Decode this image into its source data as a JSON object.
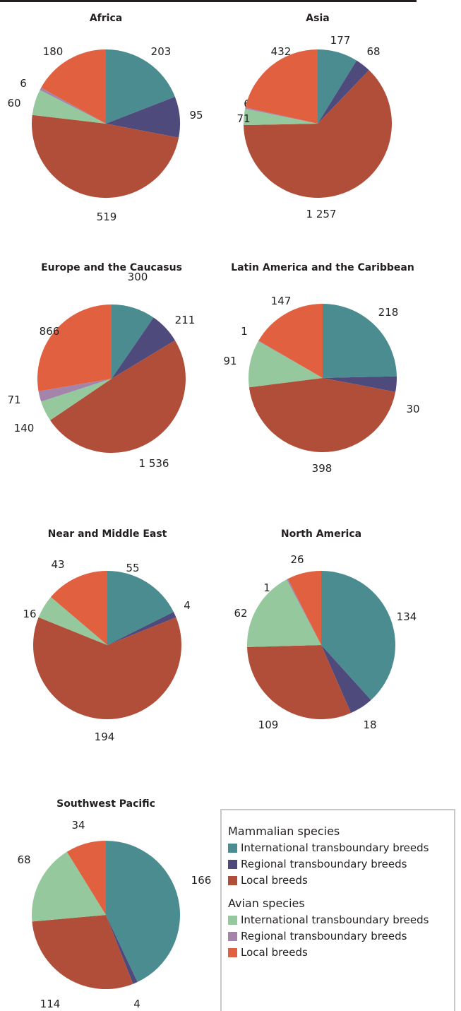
{
  "colors": {
    "mammal_international": "#4a8c8f",
    "mammal_regional": "#4f4a7c",
    "mammal_local": "#b04e3a",
    "avian_international": "#95c89c",
    "avian_regional": "#a584ab",
    "avian_local": "#e0603f"
  },
  "chart_data": [
    {
      "type": "pie",
      "title": "Africa",
      "values": [
        203,
        95,
        519,
        60,
        6,
        180
      ],
      "labels": [
        "203",
        "95",
        "519",
        "60",
        "6",
        "180"
      ]
    },
    {
      "type": "pie",
      "title": "Asia",
      "values": [
        177,
        68,
        1257,
        71,
        6,
        432
      ],
      "labels": [
        "177",
        "68",
        "1 257",
        "71",
        "6",
        "432"
      ]
    },
    {
      "type": "pie",
      "title": "Europe and the Caucasus",
      "values": [
        300,
        211,
        1536,
        140,
        71,
        866
      ],
      "labels": [
        "300",
        "211",
        "1 536",
        "140",
        "71",
        "866"
      ]
    },
    {
      "type": "pie",
      "title": "Latin America and the Caribbean",
      "values": [
        218,
        30,
        398,
        91,
        1,
        147
      ],
      "labels": [
        "218",
        "30",
        "398",
        "91",
        "1",
        "147"
      ]
    },
    {
      "type": "pie",
      "title": "Near and Middle East",
      "values": [
        55,
        4,
        194,
        16,
        0,
        43
      ],
      "labels": [
        "55",
        "4",
        "194",
        "16",
        "",
        "43"
      ]
    },
    {
      "type": "pie",
      "title": "North America",
      "values": [
        134,
        18,
        109,
        62,
        1,
        26
      ],
      "labels": [
        "134",
        "18",
        "109",
        "62",
        "1",
        "26"
      ]
    },
    {
      "type": "pie",
      "title": "Southwest Pacific",
      "values": [
        166,
        4,
        114,
        68,
        0,
        34
      ],
      "labels": [
        "166",
        "4",
        "114",
        "68",
        "",
        "34"
      ]
    }
  ],
  "legend": {
    "mammal_heading": "Mammalian species",
    "avian_heading": "Avian species",
    "mammal_items": [
      "International transboundary breeds",
      "Regional transboundary breeds",
      "Local breeds"
    ],
    "avian_items": [
      "International transboundary breeds",
      "Regional transboundary breeds",
      "Local breeds"
    ]
  }
}
